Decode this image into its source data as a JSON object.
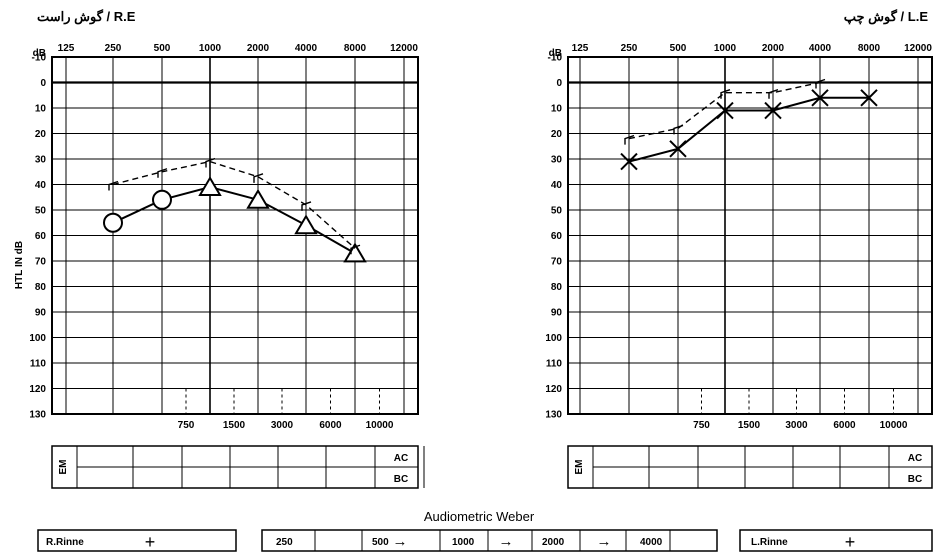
{
  "header": {
    "right_ear_title": "گوش راست / R.E",
    "left_ear_title": "گوش چپ / L.E",
    "y_axis_label": "HTL IN dB",
    "masking_label": "EM",
    "ac_label": "AC",
    "bc_label": "BC"
  },
  "axes": {
    "top_freq_labels": [
      "125",
      "250",
      "500",
      "1000",
      "2000",
      "4000",
      "8000",
      "12000"
    ],
    "bottom_freq_labels": [
      "750",
      "1500",
      "3000",
      "6000",
      "10000"
    ],
    "db_unit": "dB",
    "db_labels": [
      "-10",
      "0",
      "10",
      "20",
      "30",
      "40",
      "50",
      "60",
      "70",
      "80",
      "90",
      "100",
      "110",
      "120",
      "130"
    ]
  },
  "weber": {
    "title": "Audiometric Weber",
    "right_rinne_label": "R.Rinne",
    "right_rinne_symbol": "+",
    "left_rinne_label": "L.Rinne",
    "left_rinne_symbol": "+",
    "freq_cells": [
      "250",
      "500",
      "1000",
      "2000",
      "4000"
    ],
    "arrow_symbol": "→"
  },
  "chart_data": [
    {
      "type": "line",
      "panel": "right-ear",
      "x_scale": "octave",
      "x_ticks": [
        125,
        250,
        500,
        1000,
        2000,
        4000,
        8000,
        12000
      ],
      "ylim": [
        130,
        -10
      ],
      "ylabel": "HTL IN dB",
      "grid": true,
      "series": [
        {
          "style": "solid",
          "markers": [
            {
              "freq": 250,
              "db": 55,
              "symbol": "circle"
            },
            {
              "freq": 500,
              "db": 46,
              "symbol": "circle"
            },
            {
              "freq": 1000,
              "db": 41,
              "symbol": "triangle"
            },
            {
              "freq": 2000,
              "db": 46,
              "symbol": "triangle"
            },
            {
              "freq": 4000,
              "db": 56,
              "symbol": "triangle"
            },
            {
              "freq": 8000,
              "db": 67,
              "symbol": "triangle"
            }
          ]
        },
        {
          "style": "dashed",
          "points": [
            {
              "freq": 250,
              "db": 40
            },
            {
              "freq": 500,
              "db": 35
            },
            {
              "freq": 1000,
              "db": 31
            },
            {
              "freq": 2000,
              "db": 37
            },
            {
              "freq": 4000,
              "db": 48
            },
            {
              "freq": 8000,
              "db": 65
            }
          ]
        }
      ]
    },
    {
      "type": "line",
      "panel": "left-ear",
      "x_scale": "octave",
      "x_ticks": [
        125,
        250,
        500,
        1000,
        2000,
        4000,
        8000,
        12000
      ],
      "ylim": [
        130,
        -10
      ],
      "grid": true,
      "series": [
        {
          "style": "solid",
          "markers": [
            {
              "freq": 250,
              "db": 31,
              "symbol": "x"
            },
            {
              "freq": 500,
              "db": 26,
              "symbol": "x"
            },
            {
              "freq": 1000,
              "db": 11,
              "symbol": "x"
            },
            {
              "freq": 2000,
              "db": 11,
              "symbol": "x"
            },
            {
              "freq": 4000,
              "db": 6,
              "symbol": "x"
            },
            {
              "freq": 8000,
              "db": 6,
              "symbol": "x"
            }
          ]
        },
        {
          "style": "dashed",
          "points": [
            {
              "freq": 250,
              "db": 22
            },
            {
              "freq": 500,
              "db": 18
            },
            {
              "freq": 1000,
              "db": 4
            },
            {
              "freq": 2000,
              "db": 4
            },
            {
              "freq": 4000,
              "db": 0
            }
          ]
        }
      ]
    }
  ]
}
